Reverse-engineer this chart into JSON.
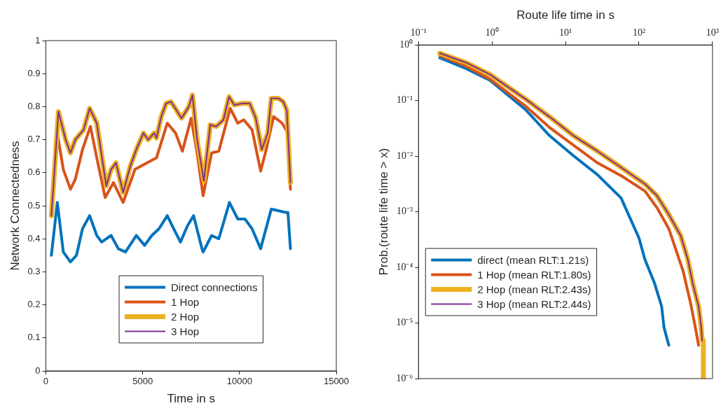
{
  "chart_data": [
    {
      "type": "line",
      "xlabel": "Time in s",
      "ylabel": "Network Connectedness",
      "xlim": [
        0,
        15000
      ],
      "xticks": [
        0,
        5000,
        10000,
        15000
      ],
      "ylim": [
        0,
        1
      ],
      "yticks": [
        0,
        0.1,
        0.2,
        0.3,
        0.4,
        0.5,
        0.6,
        0.7,
        0.8,
        0.9,
        1
      ],
      "grid": false,
      "legend": "bottom",
      "series": [
        {
          "name": "Direct connections",
          "color": "#0072bd",
          "x": [
            285,
            590,
            900,
            1270,
            1580,
            1890,
            2260,
            2630,
            2880,
            3370,
            3740,
            4110,
            4670,
            5100,
            5470,
            5840,
            6270,
            6520,
            6950,
            7320,
            7630,
            8060,
            8120,
            8560,
            8930,
            9480,
            9910,
            10280,
            10650,
            11090,
            11640,
            12380,
            12500,
            12630
          ],
          "values": [
            0.35,
            0.51,
            0.36,
            0.33,
            0.35,
            0.43,
            0.47,
            0.41,
            0.39,
            0.41,
            0.37,
            0.36,
            0.41,
            0.38,
            0.41,
            0.43,
            0.47,
            0.44,
            0.39,
            0.44,
            0.47,
            0.37,
            0.36,
            0.41,
            0.4,
            0.51,
            0.46,
            0.46,
            0.43,
            0.37,
            0.49,
            0.48,
            0.48,
            0.37
          ]
        },
        {
          "name": "1 Hop",
          "color": "#d95319",
          "x": [
            285,
            590,
            900,
            1270,
            1520,
            1890,
            2300,
            2630,
            3060,
            3490,
            3990,
            4600,
            5220,
            5710,
            6270,
            6700,
            7050,
            7500,
            7810,
            8120,
            8560,
            8930,
            9520,
            9910,
            10220,
            10650,
            11090,
            11400,
            11760,
            12200,
            12500,
            12630
          ],
          "values": [
            0.47,
            0.72,
            0.61,
            0.55,
            0.58,
            0.67,
            0.74,
            0.645,
            0.525,
            0.57,
            0.51,
            0.61,
            0.63,
            0.645,
            0.75,
            0.72,
            0.665,
            0.765,
            0.66,
            0.53,
            0.66,
            0.665,
            0.795,
            0.75,
            0.76,
            0.73,
            0.605,
            0.675,
            0.77,
            0.75,
            0.72,
            0.55
          ]
        },
        {
          "name": "2 Hop",
          "color": "#edb120",
          "x": [
            285,
            650,
            1020,
            1270,
            1520,
            1950,
            2260,
            2630,
            3120,
            3370,
            3620,
            3990,
            4360,
            4670,
            5040,
            5280,
            5590,
            5710,
            5960,
            6210,
            6460,
            7010,
            7380,
            7570,
            7810,
            8160,
            8490,
            8800,
            9170,
            9460,
            9730,
            10160,
            10530,
            10840,
            11150,
            11460,
            11640,
            12010,
            12260,
            12440,
            12630
          ],
          "values": [
            0.47,
            0.785,
            0.7,
            0.66,
            0.7,
            0.73,
            0.795,
            0.75,
            0.56,
            0.61,
            0.63,
            0.54,
            0.62,
            0.67,
            0.72,
            0.7,
            0.72,
            0.705,
            0.77,
            0.81,
            0.815,
            0.765,
            0.8,
            0.835,
            0.7,
            0.575,
            0.745,
            0.74,
            0.76,
            0.83,
            0.805,
            0.81,
            0.81,
            0.765,
            0.67,
            0.72,
            0.825,
            0.825,
            0.815,
            0.79,
            0.57
          ]
        },
        {
          "name": "3 Hop",
          "color": "#7e2f8e",
          "x": [
            285,
            650,
            1020,
            1270,
            1520,
            1950,
            2260,
            2630,
            3120,
            3370,
            3620,
            3990,
            4360,
            4670,
            5040,
            5280,
            5590,
            5710,
            5960,
            6210,
            6460,
            7010,
            7380,
            7570,
            7810,
            8160,
            8490,
            8800,
            9170,
            9460,
            9730,
            10160,
            10530,
            10840,
            11150,
            11460,
            11640,
            12010,
            12260,
            12440,
            12630
          ],
          "values": [
            0.47,
            0.785,
            0.7,
            0.66,
            0.7,
            0.73,
            0.795,
            0.75,
            0.56,
            0.61,
            0.63,
            0.54,
            0.62,
            0.67,
            0.72,
            0.7,
            0.72,
            0.705,
            0.77,
            0.81,
            0.815,
            0.765,
            0.8,
            0.835,
            0.7,
            0.575,
            0.745,
            0.74,
            0.76,
            0.83,
            0.805,
            0.81,
            0.81,
            0.765,
            0.67,
            0.72,
            0.825,
            0.825,
            0.815,
            0.79,
            0.57
          ]
        }
      ]
    },
    {
      "type": "line",
      "xlabel": "Route life time in s",
      "ylabel": "Prob.(route life time > x)",
      "log": "xy",
      "xlim": [
        0.1,
        1000
      ],
      "xticks": [
        {
          "value": 0.1,
          "label": "10⁻¹"
        },
        {
          "value": 1,
          "label": "10⁰"
        },
        {
          "value": 10,
          "label": "10¹"
        },
        {
          "value": 100,
          "label": "10²"
        },
        {
          "value": 1000,
          "label": "10³"
        }
      ],
      "ylim": [
        1e-06,
        1
      ],
      "yticks": [
        {
          "value": 1e-06,
          "label": "10⁻⁶"
        },
        {
          "value": 1e-05,
          "label": "10⁻⁵"
        },
        {
          "value": 0.0001,
          "label": "10⁻⁴"
        },
        {
          "value": 0.001,
          "label": "10⁻³"
        },
        {
          "value": 0.01,
          "label": "10⁻²"
        },
        {
          "value": 0.1,
          "label": "10⁻¹"
        },
        {
          "value": 1,
          "label": "10⁰"
        }
      ],
      "grid": false,
      "legend": "bottom left",
      "series": [
        {
          "name": "direct (mean RLT:1.21s)",
          "color": "#0072bd",
          "x": [
            0.195,
            0.443,
            0.936,
            2.87,
            6.05,
            12.8,
            27.0,
            57.0,
            100,
            120,
            162,
            203,
            219,
            254
          ],
          "values": [
            0.585,
            0.377,
            0.232,
            0.0684,
            0.0234,
            0.0102,
            0.00468,
            0.00177,
            0.000336,
            0.00014,
            5.27e-05,
            1.99e-05,
            8.26e-06,
            3.98e-06
          ]
        },
        {
          "name": "1 Hop (mean RLT:1.80s)",
          "color": "#d95319",
          "x": [
            0.195,
            0.443,
            0.936,
            2.87,
            6.05,
            12.8,
            27.0,
            57.0,
            120,
            175,
            254,
            398,
            498,
            577,
            646
          ],
          "values": [
            0.644,
            0.416,
            0.243,
            0.0794,
            0.0329,
            0.0158,
            0.00762,
            0.00446,
            0.00237,
            0.00119,
            0.000497,
            8.59e-05,
            2.41e-05,
            9.1e-06,
            3.98e-06
          ]
        },
        {
          "name": "2 Hop (mean RLT:2.43s)",
          "color": "#edb120",
          "x": [
            0.195,
            0.443,
            0.936,
            2.87,
            6.05,
            12.8,
            27.0,
            57.0,
            120,
            175,
            254,
            369,
            461,
            536,
            646,
            697,
            723,
            750,
            750
          ],
          "values": [
            0.71,
            0.481,
            0.295,
            0.106,
            0.0511,
            0.0234,
            0.0124,
            0.00627,
            0.00317,
            0.00195,
            0.000891,
            0.000372,
            0.00014,
            5.27e-05,
            1.99e-05,
            9.12e-06,
            4.83e-06,
            4.83e-06,
            1e-06
          ]
        },
        {
          "name": "3 Hop (mean RLT:2.44s)",
          "color": "#7e2f8e",
          "x": [
            0.195,
            0.443,
            0.936,
            2.87,
            6.05,
            12.8,
            27.0,
            57.0,
            120,
            175,
            254,
            369,
            461,
            536,
            646,
            697,
            723
          ],
          "values": [
            0.71,
            0.481,
            0.295,
            0.106,
            0.0511,
            0.0234,
            0.0124,
            0.00627,
            0.00317,
            0.00195,
            0.000891,
            0.000372,
            0.00014,
            5.27e-05,
            1.99e-05,
            9.12e-06,
            4.83e-06
          ]
        }
      ]
    }
  ]
}
